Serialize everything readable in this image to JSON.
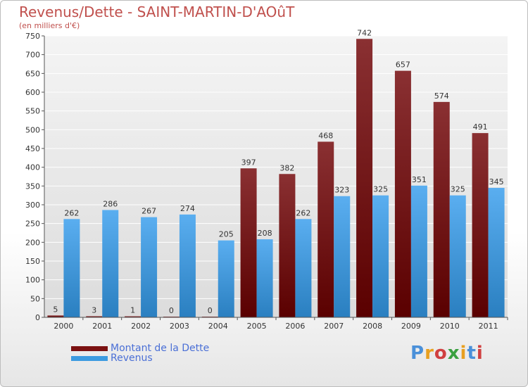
{
  "chart_data": {
    "type": "bar",
    "title": "Revenus/Dette - SAINT-MARTIN-D'AOûT",
    "subtitle": "(en milliers d'€)",
    "categories": [
      "2000",
      "2001",
      "2002",
      "2003",
      "2004",
      "2005",
      "2006",
      "2007",
      "2008",
      "2009",
      "2010",
      "2011"
    ],
    "series": [
      {
        "name": "Montant de la Dette",
        "color": "#7a1010",
        "values": [
          5,
          3,
          1,
          0,
          0,
          397,
          382,
          468,
          742,
          657,
          574,
          491
        ]
      },
      {
        "name": "Revenus",
        "color": "#3d9be0",
        "values": [
          262,
          286,
          267,
          274,
          205,
          208,
          262,
          323,
          325,
          351,
          325,
          345
        ]
      }
    ],
    "ylim": [
      0,
      750
    ],
    "yticks": [
      0,
      50,
      100,
      150,
      200,
      250,
      300,
      350,
      400,
      450,
      500,
      550,
      600,
      650,
      700,
      750
    ],
    "grid": true,
    "legend_position": "bottom-left",
    "xlabel": "",
    "ylabel": ""
  },
  "logo": {
    "text": "Proxiti",
    "colors": [
      "#4a90d9",
      "#e8a020",
      "#d04040",
      "#3aa040",
      "#e8a020",
      "#4a90d9",
      "#d04040"
    ]
  }
}
